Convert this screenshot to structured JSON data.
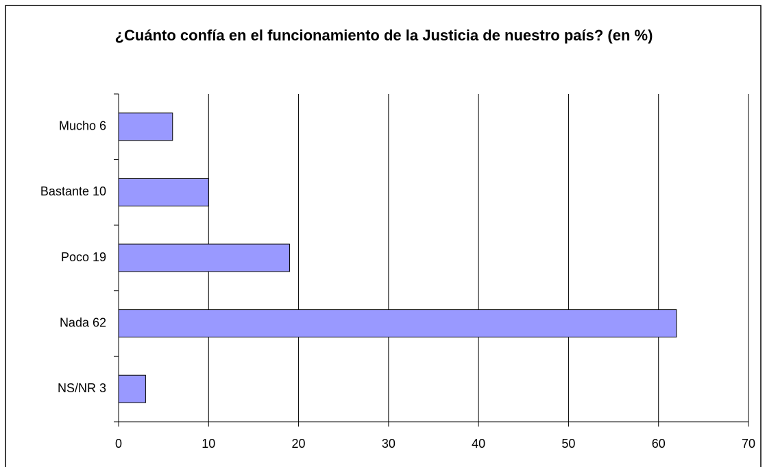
{
  "chart_data": {
    "type": "bar",
    "orientation": "horizontal",
    "title": "¿Cuánto confía en el funcionamiento de la Justicia de nuestro país? (en %)",
    "categories": [
      "Mucho 6",
      "Bastante 10",
      "Poco 19",
      "Nada 62",
      "NS/NR 3"
    ],
    "values": [
      6,
      10,
      19,
      62,
      3
    ],
    "color": "#9999ff",
    "xlim": [
      0,
      70
    ],
    "xticks": [
      0,
      10,
      20,
      30,
      40,
      50,
      60,
      70
    ],
    "grid": true
  }
}
